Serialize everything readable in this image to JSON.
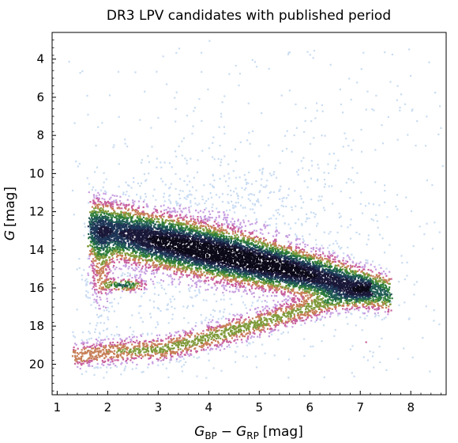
{
  "chart_data": {
    "type": "density-scatter",
    "title": "DR3 LPV candidates with published period",
    "xlabel": {
      "base": "G",
      "sub1": "BP",
      "minus": "−",
      "base2": "G",
      "sub2": "RP",
      "unit": "[mag]"
    },
    "ylabel": {
      "base": "G",
      "unit": "[mag]"
    },
    "xlim": [
      0.9,
      8.7
    ],
    "ylim": [
      21.6,
      2.6
    ],
    "y_inverted": true,
    "x_ticks": [
      "1",
      "2",
      "3",
      "4",
      "5",
      "6",
      "7",
      "8"
    ],
    "y_ticks": [
      "4",
      "6",
      "8",
      "10",
      "12",
      "14",
      "16",
      "18",
      "20"
    ],
    "colormap": [
      "#c9dcf2",
      "#c7a0e0",
      "#c9609c",
      "#c77f57",
      "#7f9a3a",
      "#2f7e3c",
      "#1f5a54",
      "#1e3657",
      "#1a1838",
      "#0c0918"
    ],
    "density_features": [
      {
        "feature": "main_band_core",
        "color": 4.6,
        "mag": 14.3
      },
      {
        "feature": "upper_band_edge",
        "color": 2.5,
        "mag": 12.5
      },
      {
        "feature": "blue_clump",
        "color": 2.3,
        "mag": 15.8
      },
      {
        "feature": "red_tip",
        "color": 7.3,
        "mag": 15.8
      },
      {
        "feature": "lower_branch",
        "color": 4.6,
        "mag": 18.8
      },
      {
        "feature": "bright_sparse_tail",
        "color": 3.7,
        "mag": 6.0
      }
    ]
  }
}
